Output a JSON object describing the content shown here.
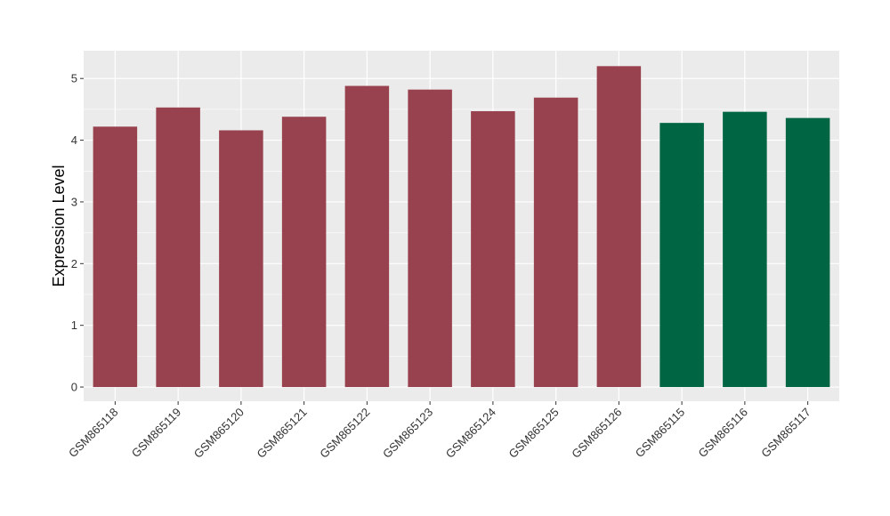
{
  "chart_data": {
    "type": "bar",
    "title": "",
    "xlabel": "",
    "ylabel": "Expression Level",
    "ylim": [
      -0.23,
      5.45
    ],
    "yticks": [
      0,
      1,
      2,
      3,
      4,
      5
    ],
    "grid": true,
    "legend": "none",
    "categories": [
      "GSM865118",
      "GSM865119",
      "GSM865120",
      "GSM865121",
      "GSM865122",
      "GSM865123",
      "GSM865124",
      "GSM865125",
      "GSM865126",
      "GSM865115",
      "GSM865116",
      "GSM865117"
    ],
    "values": [
      4.22,
      4.53,
      4.16,
      4.38,
      4.88,
      4.82,
      4.47,
      4.69,
      5.2,
      4.28,
      4.46,
      4.36
    ],
    "groups": [
      1,
      1,
      1,
      1,
      1,
      1,
      1,
      1,
      1,
      2,
      2,
      2
    ],
    "colors": {
      "group1": "#99424F",
      "group2": "#006543",
      "panel": "#EBEBEB",
      "grid": "#FFFFFF"
    }
  }
}
